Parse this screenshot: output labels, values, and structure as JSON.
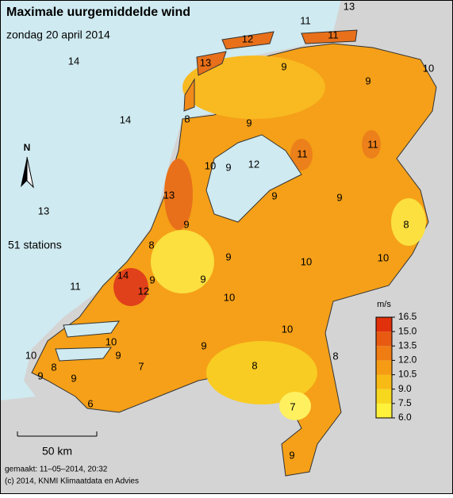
{
  "header": {
    "title": "Maximale uurgemiddelde wind",
    "subtitle": "zondag 20 april 2014"
  },
  "stations_note": "51 stations",
  "north": "N",
  "scale": "50 km",
  "labels": [
    13,
    11,
    12,
    11,
    13,
    14,
    9,
    9,
    10,
    8,
    14,
    9,
    11,
    11,
    10,
    9,
    12,
    13,
    9,
    13,
    9,
    8,
    9,
    8,
    9,
    10,
    10,
    9,
    14,
    12,
    9,
    11,
    10,
    10,
    10,
    9,
    8,
    9,
    10,
    8,
    8,
    7,
    9,
    9,
    6,
    7,
    9
  ],
  "legend": {
    "unit": "m/s",
    "ticks": [
      16.5,
      {
        "value": 15,
        "label": "15.0"
      },
      13.5,
      {
        "value": 12,
        "label": "12.0"
      },
      10.5,
      {
        "value": 9,
        "label": "9.0"
      },
      7.5,
      {
        "value": 6,
        "label": "6.0"
      }
    ],
    "colors": [
      "#e0300c",
      "#e85a12",
      "#f07c14",
      "#f59c14",
      "#f8ba14",
      "#f8d81e",
      "#fff23a"
    ]
  },
  "footer": {
    "made": "gemaakt: 11–05–2014, 20:32",
    "copyright": "(c) 2014, KNMI Klimaatdata en Advies"
  }
}
